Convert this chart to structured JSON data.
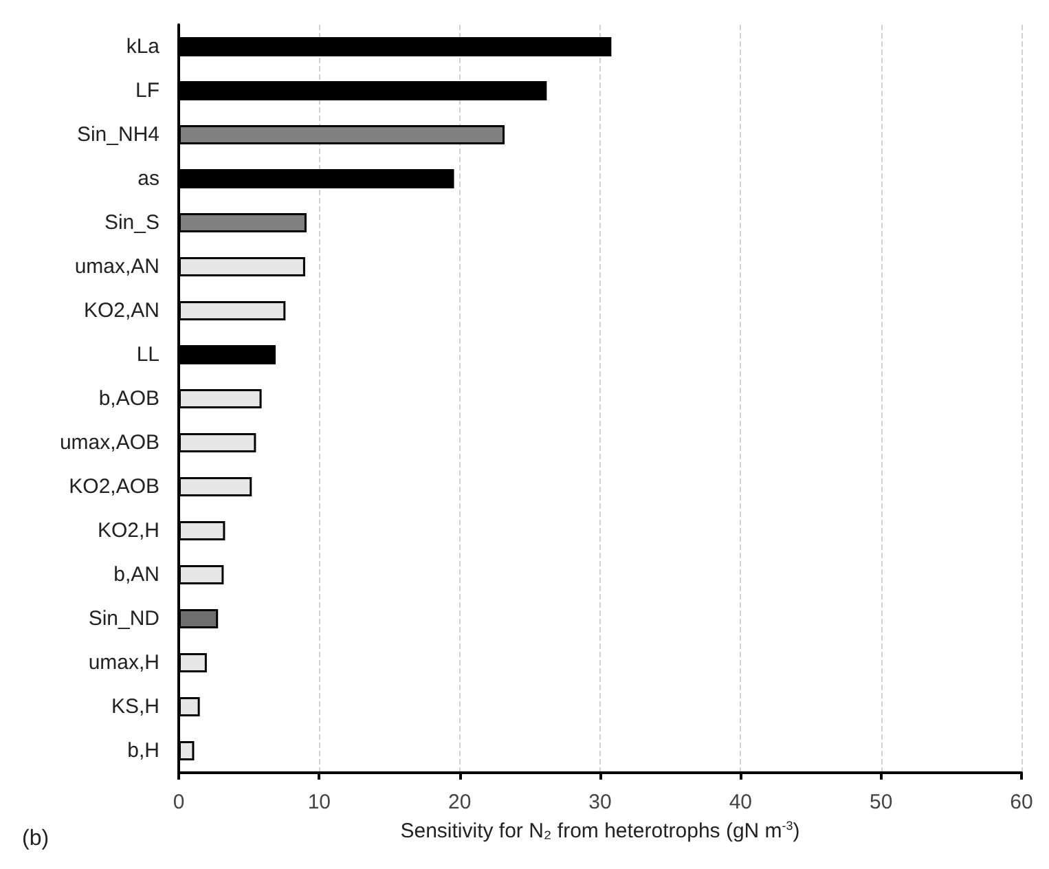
{
  "chart_data": {
    "type": "bar",
    "orientation": "horizontal",
    "xlabel": "Sensitivity for N₂ from heterotrophs (gN m$^{-3}$)",
    "annotations": [
      "(b)"
    ],
    "categories": [
      "kLa",
      "LF",
      "Sin_NH4",
      "as",
      "Sin_S",
      "umax,AN",
      "KO2,AN",
      "LL",
      "b,AOB",
      "umax,AOB",
      "KO2,AOB",
      "KO2,H",
      "b,AN",
      "Sin_ND",
      "umax,H",
      "KS,H",
      "b,H"
    ],
    "values": [
      30.8,
      26.2,
      23.2,
      19.6,
      9.1,
      9.0,
      7.6,
      6.9,
      5.9,
      5.5,
      5.2,
      3.3,
      3.2,
      2.8,
      2.0,
      1.5,
      1.1
    ],
    "colors": [
      "#000000",
      "#000000",
      "#808080",
      "#000000",
      "#808080",
      "#e6e6e6",
      "#e6e6e6",
      "#000000",
      "#e6e6e6",
      "#e6e6e6",
      "#e6e6e6",
      "#e6e6e6",
      "#e6e6e6",
      "#6e6e6e",
      "#e6e6e6",
      "#e6e6e6",
      "#e6e6e6"
    ],
    "xlim": [
      0,
      60
    ],
    "xticks": [
      0,
      10,
      20,
      30,
      40,
      50,
      60
    ],
    "grid": "x"
  }
}
